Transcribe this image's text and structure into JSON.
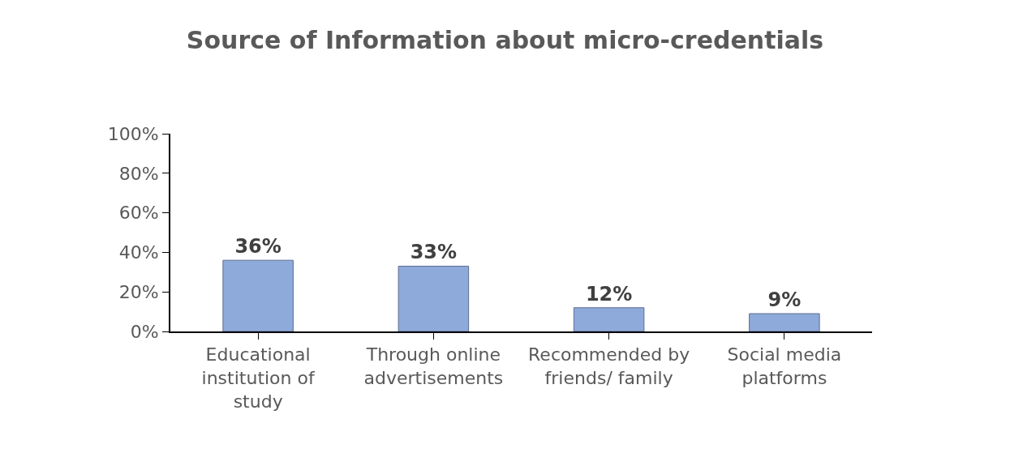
{
  "chart_data": {
    "type": "bar",
    "title": "Source of Information about micro-credentials",
    "categories": [
      "Educational institution of study",
      "Through online advertisements",
      "Recommended by friends/ family",
      "Social media platforms"
    ],
    "values": [
      36,
      33,
      12,
      9
    ],
    "value_labels": [
      "36%",
      "33%",
      "12%",
      "9%"
    ],
    "color": "#8eaadb",
    "ylim": [
      0,
      100
    ],
    "yticks": [
      {
        "value": 0,
        "label": "0%"
      },
      {
        "value": 20,
        "label": "20%"
      },
      {
        "value": 40,
        "label": "40%"
      },
      {
        "value": 60,
        "label": "60%"
      },
      {
        "value": 80,
        "label": "80%"
      },
      {
        "value": 100,
        "label": "100%"
      }
    ],
    "grid": false
  }
}
